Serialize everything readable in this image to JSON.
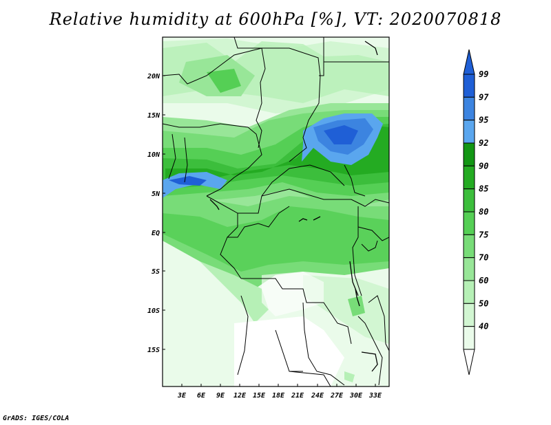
{
  "title": "Relative humidity at 600hPa [%], VT: 2020070818",
  "credit": "GrADS: IGES/COLA",
  "map": {
    "lat_labels": [
      "20N",
      "15N",
      "10N",
      "5N",
      "EQ",
      "5S",
      "10S",
      "15S"
    ],
    "lon_labels": [
      "3E",
      "6E",
      "9E",
      "12E",
      "15E",
      "18E",
      "21E",
      "24E",
      "27E",
      "30E",
      "33E"
    ]
  },
  "colorbar": {
    "labels": [
      "99",
      "97",
      "95",
      "92",
      "90",
      "85",
      "80",
      "75",
      "70",
      "60",
      "50",
      "40"
    ],
    "colors": [
      "#1f5fd6",
      "#3c84e0",
      "#5aa6ee",
      "#129614",
      "#24ab22",
      "#3cbe3c",
      "#55cf55",
      "#78dc78",
      "#98e698",
      "#b6f0b6",
      "#d2f6d2",
      "#eafbea"
    ]
  }
}
